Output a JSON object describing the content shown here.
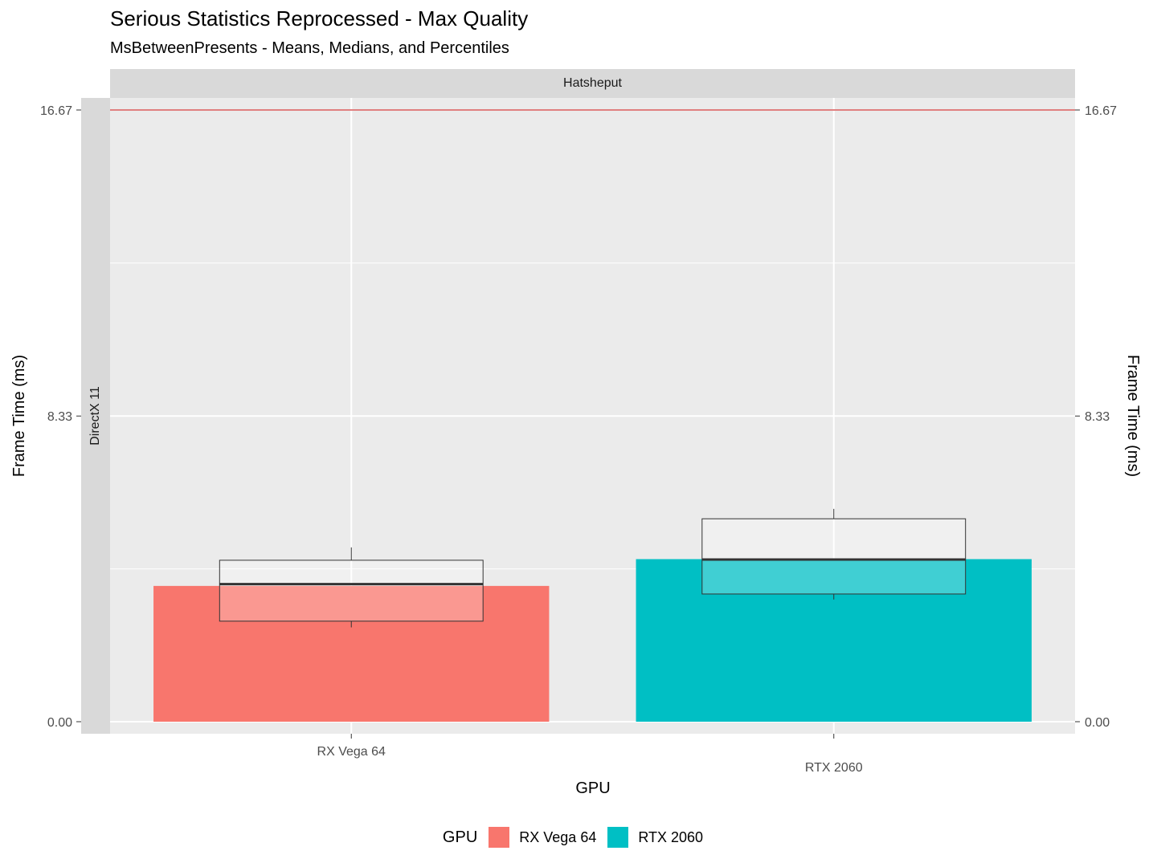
{
  "chart_data": {
    "type": "bar",
    "title": "Serious Statistics Reprocessed - Max Quality",
    "subtitle": "MsBetweenPresents - Means, Medians, and Percentiles",
    "facet_col": "Hatsheput",
    "facet_row": "DirectX 11",
    "xlabel": "GPU",
    "ylabel": "Frame Time (ms)",
    "ylabel_right": "Frame Time (ms)",
    "ylim": [
      0,
      16.67
    ],
    "yticks": [
      "0.00",
      "8.33",
      "16.67"
    ],
    "yticks_values": [
      0,
      8.33,
      16.67
    ],
    "reference_line": 16.67,
    "categories": [
      "RX Vega 64",
      "RTX 2060"
    ],
    "series": [
      {
        "name": "RX Vega 64",
        "color": "#f8766d",
        "mean": 3.7,
        "median": 3.75,
        "box_low": 2.74,
        "box_high": 4.4,
        "whisker_low": 2.57,
        "whisker_high": 4.75
      },
      {
        "name": "RTX 2060",
        "color": "#00bfc4",
        "mean": 4.43,
        "median": 4.42,
        "box_low": 3.48,
        "box_high": 5.53,
        "whisker_low": 3.33,
        "whisker_high": 5.8
      }
    ],
    "legend": {
      "title": "GPU",
      "position": "bottom",
      "entries": [
        "RX Vega 64",
        "RTX 2060"
      ]
    }
  }
}
